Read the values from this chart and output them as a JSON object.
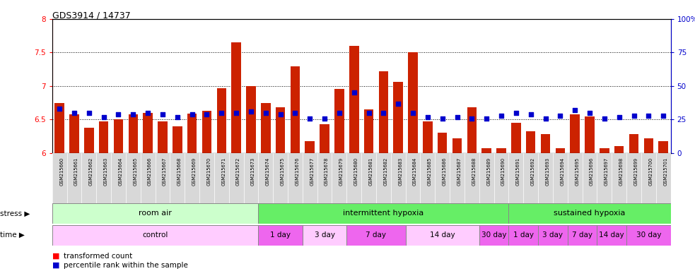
{
  "title": "GDS3914 / 14737",
  "samples": [
    "GSM215660",
    "GSM215661",
    "GSM215662",
    "GSM215663",
    "GSM215664",
    "GSM215665",
    "GSM215666",
    "GSM215667",
    "GSM215668",
    "GSM215669",
    "GSM215670",
    "GSM215671",
    "GSM215672",
    "GSM215673",
    "GSM215674",
    "GSM215675",
    "GSM215676",
    "GSM215677",
    "GSM215678",
    "GSM215679",
    "GSM215680",
    "GSM215681",
    "GSM215682",
    "GSM215683",
    "GSM215684",
    "GSM215685",
    "GSM215686",
    "GSM215687",
    "GSM215688",
    "GSM215689",
    "GSM215690",
    "GSM215691",
    "GSM215692",
    "GSM215693",
    "GSM215694",
    "GSM215695",
    "GSM215696",
    "GSM215697",
    "GSM215698",
    "GSM215699",
    "GSM215700",
    "GSM215701"
  ],
  "red_values": [
    6.75,
    6.58,
    6.38,
    6.47,
    6.5,
    6.58,
    6.6,
    6.47,
    6.4,
    6.59,
    6.63,
    6.97,
    7.65,
    7.0,
    6.75,
    6.68,
    7.29,
    6.18,
    6.43,
    6.96,
    7.6,
    6.65,
    7.22,
    7.06,
    7.5,
    6.47,
    6.3,
    6.22,
    6.68,
    6.07,
    6.07,
    6.45,
    6.33,
    6.28,
    6.07,
    6.58,
    6.55,
    6.07,
    6.1,
    6.28,
    6.22,
    6.18
  ],
  "blue_values": [
    33,
    30,
    30,
    27,
    29,
    29,
    30,
    29,
    27,
    29,
    29,
    30,
    30,
    31,
    30,
    29,
    30,
    26,
    26,
    30,
    45,
    30,
    30,
    37,
    30,
    27,
    26,
    27,
    26,
    26,
    28,
    30,
    29,
    26,
    28,
    32,
    30,
    26,
    27,
    28,
    28,
    28
  ],
  "ylim_left": [
    6.0,
    8.0
  ],
  "ylim_right": [
    0,
    100
  ],
  "yticks_left": [
    6.0,
    6.5,
    7.0,
    7.5,
    8.0
  ],
  "yticks_right": [
    0,
    25,
    50,
    75,
    100
  ],
  "bar_color": "#CC2200",
  "dot_color": "#0000CC",
  "stress_groups": [
    {
      "label": "room air",
      "start": 0,
      "end": 14,
      "color": "#ccffcc"
    },
    {
      "label": "intermittent hypoxia",
      "start": 14,
      "end": 31,
      "color": "#66ee66"
    },
    {
      "label": "sustained hypoxia",
      "start": 31,
      "end": 42,
      "color": "#66ee66"
    }
  ],
  "time_groups": [
    {
      "label": "control",
      "start": 0,
      "end": 14,
      "color": "#ffccff"
    },
    {
      "label": "1 day",
      "start": 14,
      "end": 17,
      "color": "#ee66ee"
    },
    {
      "label": "3 day",
      "start": 17,
      "end": 20,
      "color": "#ffccff"
    },
    {
      "label": "7 day",
      "start": 20,
      "end": 24,
      "color": "#ee66ee"
    },
    {
      "label": "14 day",
      "start": 24,
      "end": 29,
      "color": "#ffccff"
    },
    {
      "label": "30 day",
      "start": 29,
      "end": 31,
      "color": "#ee66ee"
    },
    {
      "label": "1 day",
      "start": 31,
      "end": 33,
      "color": "#ee66ee"
    },
    {
      "label": "3 day",
      "start": 33,
      "end": 35,
      "color": "#ee66ee"
    },
    {
      "label": "7 day",
      "start": 35,
      "end": 37,
      "color": "#ee66ee"
    },
    {
      "label": "14 day",
      "start": 37,
      "end": 39,
      "color": "#ee66ee"
    },
    {
      "label": "30 day",
      "start": 39,
      "end": 42,
      "color": "#ee66ee"
    }
  ],
  "xticklabel_bg": "#d8d8d8"
}
